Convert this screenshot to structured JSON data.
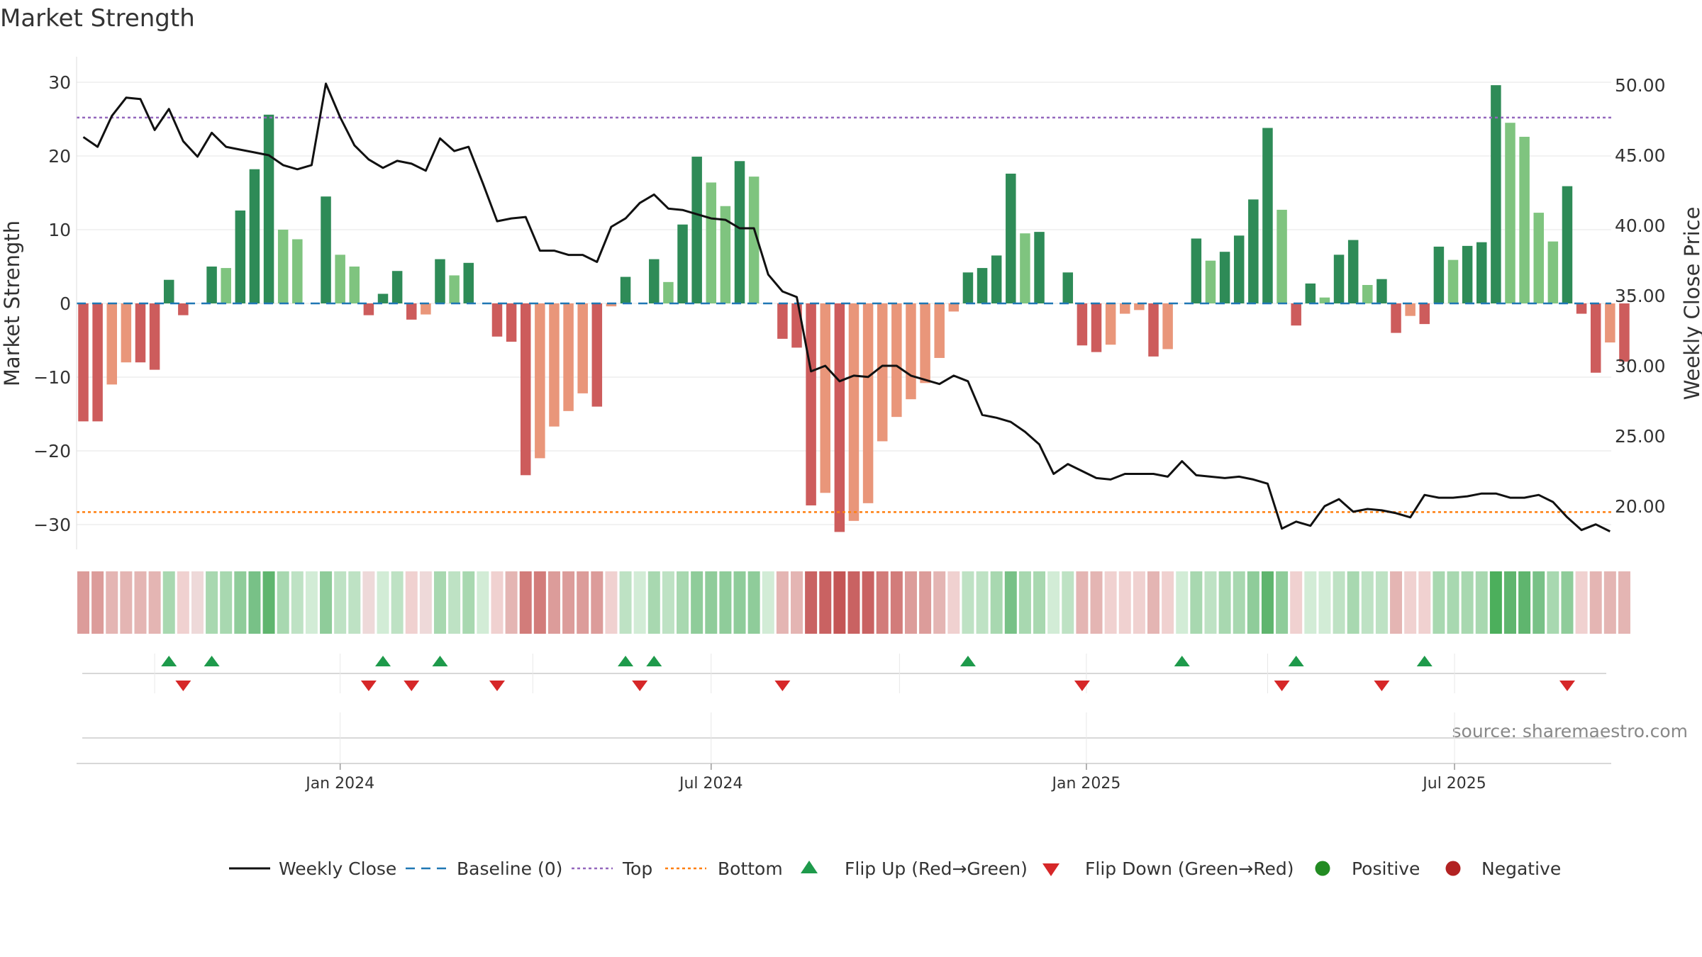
{
  "chart_data": {
    "type": "bar",
    "title": "Market Strength",
    "ylabel_left": "Market Strength",
    "ylabel_right": "Weekly Close Price",
    "source": "source: sharemaestro.com",
    "y_left_ticks": [
      -30,
      -20,
      -10,
      0,
      10,
      20,
      30
    ],
    "y_left_tick_labels": [
      "−30",
      "−20",
      "−10",
      "0",
      "10",
      "20",
      "30"
    ],
    "y_right_ticks": [
      20,
      25,
      30,
      35,
      40,
      45,
      50
    ],
    "y_right_tick_labels": [
      "20.00",
      "25.00",
      "30.00",
      "35.00",
      "40.00",
      "45.00",
      "50.00"
    ],
    "ylim_left": [
      -33,
      33
    ],
    "ylim_right": [
      16.6,
      51.1
    ],
    "top_line": 25.2,
    "bottom_line": -28.3,
    "x_ticks": [
      {
        "label": "Jan 2024",
        "week": 18
      },
      {
        "label": "Jul 2024",
        "week": 44
      },
      {
        "label": "Jan 2025",
        "week": 70.3
      },
      {
        "label": "Jul 2025",
        "week": 96.1
      }
    ],
    "strength": [
      -16,
      -16,
      -11,
      -8,
      -8,
      -9,
      3.2,
      -1.6,
      0,
      5,
      4.8,
      12.6,
      18.2,
      25.6,
      10,
      8.7,
      0,
      14.5,
      6.6,
      5,
      -1.6,
      1.3,
      4.4,
      -2.2,
      -1.5,
      6,
      3.8,
      5.5,
      0,
      -4.5,
      -5.2,
      -23.3,
      -21,
      -16.7,
      -14.6,
      -12.2,
      -14,
      -0.4,
      3.6,
      0,
      6,
      2.9,
      10.7,
      19.9,
      16.4,
      13.2,
      19.3,
      17.2,
      0,
      -4.8,
      -6,
      -27.4,
      -25.7,
      -31,
      -29.5,
      -27.1,
      -18.7,
      -15.4,
      -13,
      -10.8,
      -7.4,
      -1.1,
      4.2,
      4.8,
      6.5,
      17.6,
      9.5,
      9.7,
      0,
      4.2,
      -5.7,
      -6.6,
      -5.6,
      -1.4,
      -0.9,
      -7.2,
      -6.2,
      0,
      8.8,
      5.8,
      7,
      9.2,
      14.1,
      23.8,
      12.7,
      -3,
      2.7,
      0.8,
      6.6,
      8.6,
      2.5,
      3.3,
      -4,
      -1.7,
      -2.8,
      7.7,
      5.9,
      7.8,
      8.3,
      29.6,
      24.5,
      22.6,
      12.3,
      8.4,
      15.9,
      -1.4,
      -9.4,
      -5.3,
      -7.9
    ],
    "strength_shade": [
      "d",
      "d",
      "l",
      "l",
      "d",
      "d",
      "d",
      "d",
      "l",
      "d",
      "l",
      "d",
      "d",
      "d",
      "l",
      "l",
      "l",
      "d",
      "l",
      "l",
      "d",
      "d",
      "d",
      "d",
      "l",
      "d",
      "l",
      "d",
      "d",
      "d",
      "d",
      "d",
      "l",
      "l",
      "l",
      "l",
      "d",
      "l",
      "d",
      "d",
      "d",
      "l",
      "d",
      "d",
      "l",
      "l",
      "d",
      "l",
      "d",
      "d",
      "d",
      "d",
      "l",
      "d",
      "l",
      "l",
      "l",
      "l",
      "l",
      "l",
      "l",
      "l",
      "d",
      "d",
      "d",
      "d",
      "l",
      "d",
      "d",
      "d",
      "d",
      "d",
      "l",
      "l",
      "l",
      "d",
      "l",
      "d",
      "d",
      "l",
      "d",
      "d",
      "d",
      "d",
      "l",
      "d",
      "d",
      "l",
      "d",
      "d",
      "l",
      "d",
      "d",
      "l",
      "d",
      "d",
      "l",
      "d",
      "d",
      "d",
      "l",
      "l",
      "l",
      "l",
      "d",
      "d",
      "d",
      "l",
      "d"
    ],
    "weekly_close": [
      46.3,
      45.6,
      47.8,
      49.1,
      49.0,
      46.8,
      48.3,
      46.0,
      44.9,
      46.6,
      45.6,
      45.4,
      45.2,
      45.0,
      44.3,
      44.0,
      44.3,
      50.1,
      47.7,
      45.7,
      44.7,
      44.1,
      44.6,
      44.4,
      43.9,
      46.2,
      45.3,
      45.6,
      43.0,
      40.3,
      40.5,
      40.6,
      38.2,
      38.2,
      37.9,
      37.9,
      37.4,
      39.9,
      40.5,
      41.6,
      42.2,
      41.2,
      41.1,
      40.8,
      40.5,
      40.4,
      39.8,
      39.8,
      36.5,
      35.3,
      34.9,
      29.6,
      30.0,
      28.9,
      29.3,
      29.2,
      30.0,
      30.0,
      29.3,
      29.0,
      28.7,
      29.3,
      28.9,
      26.5,
      26.3,
      26.0,
      25.3,
      24.4,
      22.3,
      23.0,
      22.5,
      22.0,
      21.9,
      22.3,
      22.3,
      22.3,
      22.1,
      23.2,
      22.2,
      22.1,
      22.0,
      22.1,
      21.9,
      21.6,
      18.4,
      18.9,
      18.6,
      20.0,
      20.5,
      19.6,
      19.8,
      19.7,
      19.5,
      19.2,
      20.8,
      20.6,
      20.6,
      20.7,
      20.9,
      20.9,
      20.6,
      20.6,
      20.8,
      20.3,
      19.2,
      18.3,
      18.7,
      18.2
    ],
    "strip_colors": [
      "#dc9c9a",
      "#dc9c9a",
      "#e4b5b3",
      "#e4b5b3",
      "#e4b5b3",
      "#e4b5b3",
      "#a8d8b0",
      "#f0d1d0",
      "#eed9d9",
      "#a8d8b0",
      "#a8d8b0",
      "#8fcc9a",
      "#78c187",
      "#5fb56e",
      "#a8d8b0",
      "#bee2c4",
      "#d2ecd6",
      "#8fcc9a",
      "#bee2c4",
      "#bee2c4",
      "#eed9d9",
      "#d2ecd6",
      "#bee2c4",
      "#f0d1d0",
      "#eed9d9",
      "#a8d8b0",
      "#bee2c4",
      "#a8d8b0",
      "#d2ecd6",
      "#f0d1d0",
      "#e4b5b3",
      "#d27c7a",
      "#d27c7a",
      "#dc9c9a",
      "#dc9c9a",
      "#dc9c9a",
      "#dc9c9a",
      "#f0d1d0",
      "#bee2c4",
      "#d2ecd6",
      "#a8d8b0",
      "#bee2c4",
      "#a8d8b0",
      "#8fcc9a",
      "#8fcc9a",
      "#8fcc9a",
      "#8fcc9a",
      "#8fcc9a",
      "#d2ecd6",
      "#e4b5b3",
      "#e4b5b3",
      "#c96262",
      "#c96262",
      "#c45555",
      "#c96262",
      "#c96262",
      "#d27c7a",
      "#d27c7a",
      "#dc9c9a",
      "#dc9c9a",
      "#e4b5b3",
      "#f0d1d0",
      "#bee2c4",
      "#bee2c4",
      "#a8d8b0",
      "#78c187",
      "#a8d8b0",
      "#a8d8b0",
      "#d2ecd6",
      "#bee2c4",
      "#e4b5b3",
      "#e4b5b3",
      "#f0d1d0",
      "#f0d1d0",
      "#f0d1d0",
      "#e4b5b3",
      "#f0d1d0",
      "#d2ecd6",
      "#a8d8b0",
      "#bee2c4",
      "#a8d8b0",
      "#a8d8b0",
      "#8fcc9a",
      "#5fb56e",
      "#8fcc9a",
      "#f0d1d0",
      "#d2ecd6",
      "#d2ecd6",
      "#bee2c4",
      "#a8d8b0",
      "#bee2c4",
      "#bee2c4",
      "#e4b5b3",
      "#f0d1d0",
      "#f0d1d0",
      "#a8d8b0",
      "#a8d8b0",
      "#a8d8b0",
      "#a8d8b0",
      "#4caf5c",
      "#5fb56e",
      "#5fb56e",
      "#78c187",
      "#a8d8b0",
      "#8fcc9a",
      "#f0d1d0",
      "#e4b5b3",
      "#e4b5b3",
      "#e4b5b3"
    ],
    "flip_up_weeks": [
      6,
      9,
      21,
      25,
      38,
      40,
      62,
      77,
      85,
      94
    ],
    "flip_down_weeks": [
      7,
      20,
      23,
      29,
      39,
      49,
      70,
      84,
      91,
      104
    ],
    "legend": [
      {
        "label": "Weekly Close",
        "kind": "line"
      },
      {
        "label": "Baseline (0)",
        "kind": "dash"
      },
      {
        "label": "Top",
        "kind": "dot-purple"
      },
      {
        "label": "Bottom",
        "kind": "dot-orange"
      },
      {
        "label": "Flip Up (Red→Green)",
        "kind": "tri-up"
      },
      {
        "label": "Flip Down (Green→Red)",
        "kind": "tri-down"
      },
      {
        "label": "Positive",
        "kind": "dot-green"
      },
      {
        "label": "Negative",
        "kind": "dot-red"
      }
    ],
    "colors": {
      "pos_dark": "#2e8b57",
      "pos_light": "#7fc47f",
      "neg_dark": "#cd5c5c",
      "neg_light": "#e9967a",
      "close_line": "#111111",
      "baseline": "#1f77b4",
      "top": "#9467bd",
      "bottom": "#ff7f0e",
      "flip_up": "#1e9a4b",
      "flip_down": "#d62728",
      "positive": "#228b22",
      "negative": "#b22222",
      "grid": "#e6e6e6",
      "text": "#333333",
      "source": "#888888"
    }
  }
}
